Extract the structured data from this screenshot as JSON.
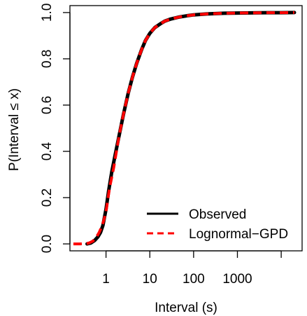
{
  "chart_data": {
    "type": "line",
    "title": "",
    "xlabel": "Interval (s)",
    "ylabel_prefix": "P(Interval ",
    "ylabel_symbol": "≤",
    "ylabel_suffix": " x)",
    "x_scale": "log",
    "xlim": [
      0.15,
      30000
    ],
    "ylim": [
      -0.03,
      1.03
    ],
    "x_ticks": [
      {
        "value": 1,
        "label": "1"
      },
      {
        "value": 10,
        "label": "10"
      },
      {
        "value": 100,
        "label": "100"
      },
      {
        "value": 1000,
        "label": "1000"
      },
      {
        "value": 10000,
        "label": ""
      }
    ],
    "y_ticks": [
      {
        "value": 0.0,
        "label": "0.0"
      },
      {
        "value": 0.2,
        "label": "0.2"
      },
      {
        "value": 0.4,
        "label": "0.4"
      },
      {
        "value": 0.6,
        "label": "0.6"
      },
      {
        "value": 0.8,
        "label": "0.8"
      },
      {
        "value": 1.0,
        "label": "1.0"
      }
    ],
    "grid": false,
    "legend_position": "bottom-right",
    "series": [
      {
        "name": "Observed",
        "color": "#000000",
        "style": "solid",
        "x": [
          0.37,
          0.45,
          0.55,
          0.65,
          0.75,
          0.85,
          1.0,
          1.15,
          1.35,
          1.6,
          2.0,
          2.5,
          3.2,
          4.0,
          5.0,
          6.5,
          8.0,
          10.0,
          13.0,
          17.0,
          22.0,
          30.0,
          45.0,
          70.0,
          100.0,
          200.0,
          500.0,
          1000.0,
          3000.0,
          10000.0,
          20000.0
        ],
        "y": [
          0.0,
          0.004,
          0.015,
          0.03,
          0.05,
          0.08,
          0.15,
          0.23,
          0.31,
          0.38,
          0.47,
          0.56,
          0.65,
          0.72,
          0.78,
          0.84,
          0.88,
          0.91,
          0.935,
          0.95,
          0.963,
          0.972,
          0.98,
          0.986,
          0.99,
          0.994,
          0.997,
          0.998,
          0.999,
          0.9995,
          1.0
        ]
      },
      {
        "name": "Lognormal−GPD",
        "color": "#ff0000",
        "style": "dashed",
        "x": [
          0.18,
          0.25,
          0.32,
          0.4,
          0.5,
          0.6,
          0.7,
          0.8,
          0.9,
          1.0,
          1.2,
          1.5,
          2.0,
          2.5,
          3.2,
          4.0,
          5.0,
          6.5,
          8.0,
          10.0,
          13.0,
          17.0,
          22.0,
          30.0,
          45.0,
          70.0,
          100.0,
          200.0,
          500.0,
          1000.0,
          3000.0,
          10000.0,
          20000.0
        ],
        "y": [
          0.0,
          0.0,
          0.0005,
          0.003,
          0.012,
          0.028,
          0.05,
          0.075,
          0.105,
          0.14,
          0.24,
          0.33,
          0.47,
          0.56,
          0.65,
          0.72,
          0.78,
          0.84,
          0.88,
          0.91,
          0.935,
          0.95,
          0.963,
          0.972,
          0.98,
          0.986,
          0.99,
          0.994,
          0.997,
          0.998,
          0.999,
          0.9995,
          1.0
        ]
      }
    ]
  }
}
